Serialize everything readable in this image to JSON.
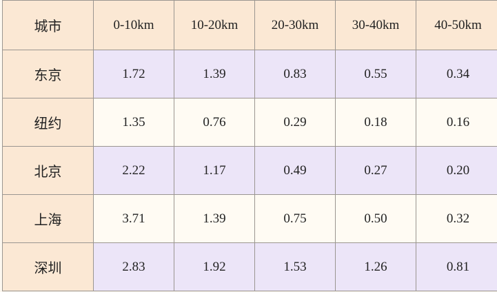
{
  "table": {
    "header": [
      "城市",
      "0-10km",
      "10-20km",
      "20-30km",
      "30-40km",
      "40-50km"
    ],
    "rows": [
      [
        "东京",
        "1.72",
        "1.39",
        "0.83",
        "0.55",
        "0.34"
      ],
      [
        "纽约",
        "1.35",
        "0.76",
        "0.29",
        "0.18",
        "0.16"
      ],
      [
        "北京",
        "2.22",
        "1.17",
        "0.49",
        "0.27",
        "0.20"
      ],
      [
        "上海",
        "3.71",
        "1.39",
        "0.75",
        "0.50",
        "0.32"
      ],
      [
        "深圳",
        "2.83",
        "1.92",
        "1.53",
        "1.26",
        "0.81"
      ]
    ]
  }
}
